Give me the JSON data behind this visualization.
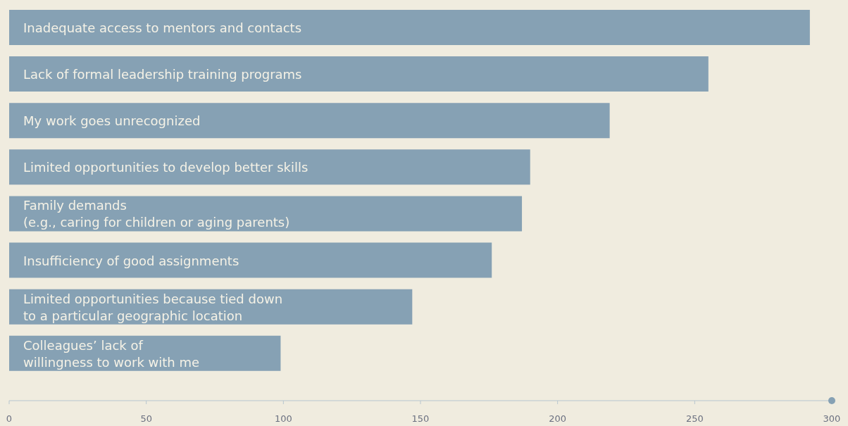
{
  "chart_data": {
    "type": "bar",
    "orientation": "horizontal",
    "categories": [
      "Inadequate access to mentors and contacts",
      "Lack of formal leadership training programs",
      "My work goes unrecognized",
      "Limited opportunities to develop better skills",
      "Family demands\n(e.g., caring for children or aging parents)",
      "Insufficiency of good assignments",
      "Limited opportunities because tied down\nto a particular geographic location",
      "Colleagues’ lack of\nwillingness to work with me"
    ],
    "values": [
      292,
      255,
      219,
      190,
      187,
      176,
      147,
      99
    ],
    "color": "#86a1b4",
    "xlim": [
      0,
      300
    ],
    "xticks": [
      0,
      50,
      100,
      150,
      200,
      250,
      300
    ],
    "grid": false,
    "legend": false
  }
}
